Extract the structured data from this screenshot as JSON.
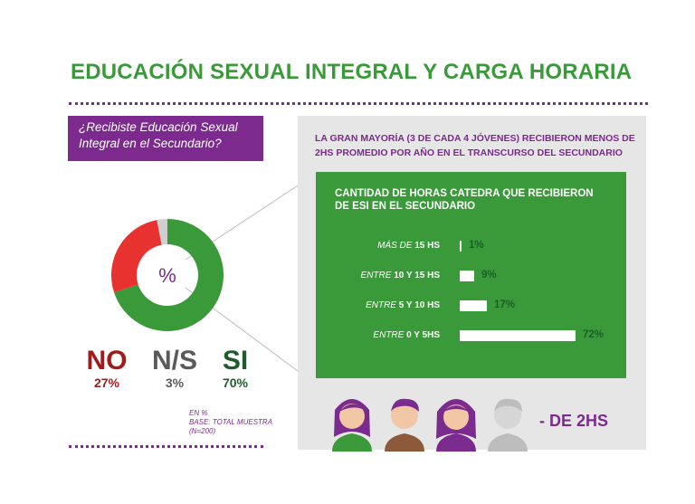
{
  "title": "EDUCACIÓN SEXUAL INTEGRAL Y CARGA HORARIA",
  "question": "¿Recibiste Educación Sexual Integral en el Secundario?",
  "headline": "LA GRAN MAYORÍA (3 DE CADA 4 JÓVENES) RECIBIERON MENOS DE 2HS PROMEDIO POR AÑO EN EL TRANSCURSO DEL SECUNDARIO",
  "donut_center": "%",
  "note": {
    "line1": "EN %",
    "line2": "BASE: TOTAL MUESTRA",
    "line3": "(N=200)"
  },
  "footer_label": "- DE 2HS",
  "colors": {
    "green": "#3a9a3a",
    "red": "#e8322f",
    "gray": "#cfcfcf",
    "purple": "#7b2a8e",
    "darkgreen": "#1f5c2a"
  },
  "chart_data": [
    {
      "type": "pie",
      "title": "¿Recibiste Educación Sexual Integral en el Secundario?",
      "slices": [
        {
          "label": "SI",
          "value": 70,
          "value_label": "70%"
        },
        {
          "label": "NO",
          "value": 27,
          "value_label": "27%"
        },
        {
          "label": "N/S",
          "value": 3,
          "value_label": "3%"
        }
      ]
    },
    {
      "type": "bar",
      "title": "CANTIDAD DE HORAS CATEDRA QUE RECIBIERON DE ESI EN EL SECUNDARIO",
      "categories": [
        {
          "prefix": "MÁS DE",
          "value": "15 HS"
        },
        {
          "prefix": "ENTRE",
          "value": "10 Y 15 HS"
        },
        {
          "prefix": "ENTRE",
          "value": "5 Y 10 HS"
        },
        {
          "prefix": "ENTRE",
          "value": "0 Y 5HS"
        }
      ],
      "values": [
        1,
        9,
        17,
        72
      ],
      "value_labels": [
        "1%",
        "9%",
        "17%",
        "72%"
      ],
      "xlim": [
        0,
        72
      ]
    }
  ]
}
